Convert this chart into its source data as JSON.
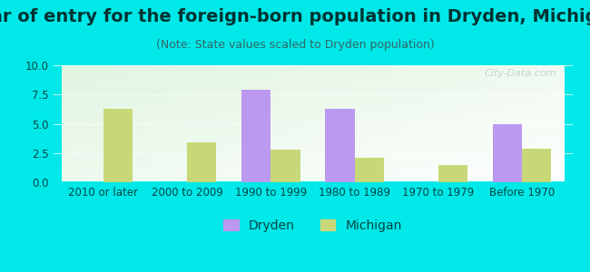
{
  "title": "Year of entry for the foreign-born population in Dryden, Michigan",
  "subtitle": "(Note: State values scaled to Dryden population)",
  "categories": [
    "2010 or later",
    "2000 to 2009",
    "1990 to 1999",
    "1980 to 1989",
    "1970 to 1979",
    "Before 1970"
  ],
  "dryden_values": [
    0,
    0,
    7.9,
    6.3,
    0,
    5.0
  ],
  "michigan_values": [
    6.3,
    3.4,
    2.8,
    2.1,
    1.5,
    2.9
  ],
  "dryden_color": "#bb99ee",
  "michigan_color": "#c8d878",
  "background_outer": "#00e8e8",
  "ylim": [
    0,
    10
  ],
  "yticks": [
    0,
    2.5,
    5,
    7.5,
    10
  ],
  "bar_width": 0.35,
  "title_fontsize": 14,
  "subtitle_fontsize": 9,
  "legend_fontsize": 10,
  "tick_fontsize": 8.5,
  "title_color": "#003333",
  "subtitle_color": "#336666",
  "tick_color": "#004444",
  "watermark": "City-Data.com"
}
